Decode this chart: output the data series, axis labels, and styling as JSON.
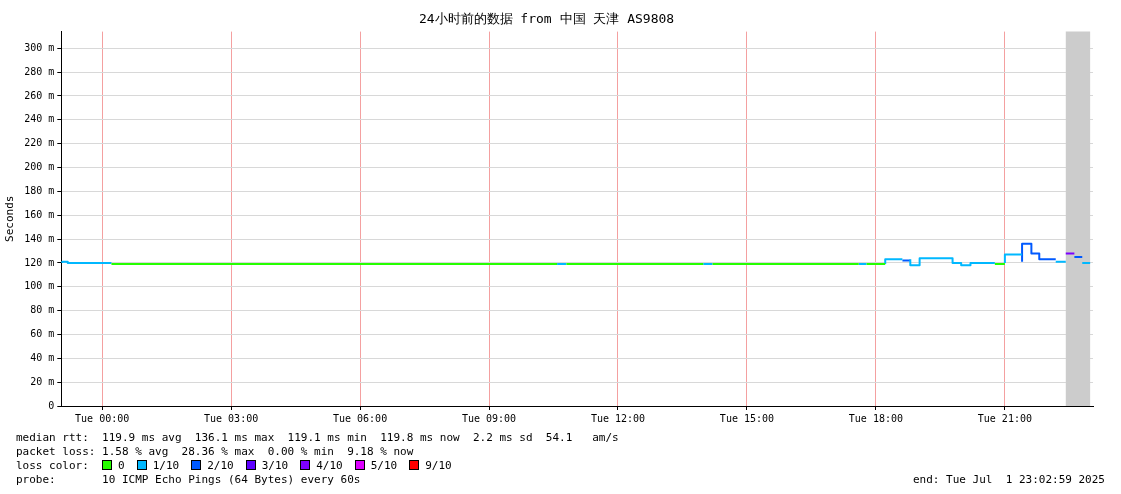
{
  "chart_data": {
    "type": "step",
    "title": "24小时前的数据 from 中国 天津 AS9808",
    "ylabel": "Seconds",
    "legend_title": "loss color:",
    "legend": "bottom",
    "grid": true,
    "xlim": [
      "2025-06-30T23:03",
      "2025-07-01T23:03"
    ],
    "xticks": [
      {
        "value": "2025-07-01T00:00",
        "label": "Tue 00:00"
      },
      {
        "value": "2025-07-01T03:00",
        "label": "Tue 03:00"
      },
      {
        "value": "2025-07-01T06:00",
        "label": "Tue 06:00"
      },
      {
        "value": "2025-07-01T09:00",
        "label": "Tue 09:00"
      },
      {
        "value": "2025-07-01T12:00",
        "label": "Tue 12:00"
      },
      {
        "value": "2025-07-01T15:00",
        "label": "Tue 15:00"
      },
      {
        "value": "2025-07-01T18:00",
        "label": "Tue 18:00"
      },
      {
        "value": "2025-07-01T21:00",
        "label": "Tue 21:00"
      }
    ],
    "ylim": [
      0,
      314
    ],
    "yticks": [
      0,
      {
        "value": 20,
        "label": "20 m"
      },
      {
        "value": 40,
        "label": "40 m"
      },
      {
        "value": 60,
        "label": "60 m"
      },
      {
        "value": 80,
        "label": "80 m"
      },
      {
        "value": 100,
        "label": "100 m"
      },
      {
        "value": 120,
        "label": "120 m"
      },
      {
        "value": 140,
        "label": "140 m"
      },
      {
        "value": 160,
        "label": "160 m"
      },
      {
        "value": 180,
        "label": "180 m"
      },
      {
        "value": 200,
        "label": "200 m"
      },
      {
        "value": 220,
        "label": "220 m"
      },
      {
        "value": 240,
        "label": "240 m"
      },
      {
        "value": 260,
        "label": "260 m"
      },
      {
        "value": 280,
        "label": "280 m"
      },
      {
        "value": 300,
        "label": "300 m"
      }
    ],
    "bands": [
      {
        "axis": "x",
        "from": "2025-07-01T22:25",
        "to": "2025-07-01T22:59",
        "color": "#cccccc"
      }
    ],
    "series": [
      {
        "name": "0",
        "color": "#26ff00",
        "x": [
          "2025-07-01T00:13",
          "2025-07-01T10:35",
          null,
          "2025-07-01T10:48",
          "2025-07-01T13:59",
          null,
          "2025-07-01T14:12",
          "2025-07-01T17:36",
          null,
          "2025-07-01T17:47",
          "2025-07-01T18:13",
          null,
          "2025-07-01T20:46",
          "2025-07-01T21:00"
        ],
        "values": [
          119,
          119,
          null,
          119,
          119,
          null,
          119,
          119,
          null,
          119,
          119,
          null,
          119,
          119
        ]
      },
      {
        "name": "1/10",
        "color": "#00b8ff",
        "x": [
          "2025-06-30T23:04",
          "2025-06-30T23:12",
          "2025-06-30T23:46",
          "2025-07-01T00:13",
          null,
          "2025-07-01T10:35",
          "2025-07-01T10:48",
          null,
          "2025-07-01T13:59",
          "2025-07-01T14:12",
          null,
          "2025-07-01T17:36",
          "2025-07-01T17:47",
          null,
          "2025-07-01T18:13",
          "2025-07-01T18:24",
          "2025-07-01T18:37",
          null,
          "2025-07-01T18:48",
          "2025-07-01T19:01",
          "2025-07-01T19:47",
          "2025-07-01T19:59",
          "2025-07-01T20:12",
          "2025-07-01T20:25",
          "2025-07-01T20:46",
          null,
          "2025-07-01T21:00",
          "2025-07-01T21:11",
          "2025-07-01T21:24",
          null,
          "2025-07-01T22:11",
          "2025-07-01T22:25",
          null,
          "2025-07-01T22:48",
          "2025-07-01T22:59"
        ],
        "values": [
          120,
          121,
          120,
          120,
          null,
          119,
          119,
          null,
          119,
          119,
          null,
          119,
          119,
          null,
          119,
          123,
          123,
          null,
          123,
          118,
          124,
          120,
          118,
          120,
          120,
          null,
          120,
          127,
          127,
          null,
          121,
          121,
          null,
          120,
          120
        ]
      },
      {
        "name": "2/10",
        "color": "#0059ff",
        "x": [
          "2025-07-01T18:37",
          "2025-07-01T18:48",
          null,
          "2025-07-01T21:24",
          "2025-07-01T21:37",
          "2025-07-01T21:48",
          "2025-07-01T22:01",
          "2025-07-01T22:11",
          null,
          "2025-07-01T22:37",
          "2025-07-01T22:48"
        ],
        "values": [
          122,
          122,
          null,
          121,
          136,
          128,
          123,
          123,
          null,
          125,
          125
        ]
      },
      {
        "name": "3/10",
        "color": "#5e00ff"
      },
      {
        "name": "4/10",
        "color": "#7e00ff",
        "x": [
          "2025-07-01T22:25",
          "2025-07-01T22:37"
        ],
        "values": [
          128,
          128
        ]
      },
      {
        "name": "5/10",
        "color": "#dd00ff"
      },
      {
        "name": "9/10",
        "color": "#ff0000"
      }
    ],
    "annotations": [
      "median rtt:  119.9 ms avg  136.1 ms max  119.1 ms min  119.8 ms now  2.2 ms sd  54.1   am/s",
      "packet loss: 1.58 % avg  28.36 % max  0.00 % min  9.18 % now",
      "probe:       10 ICMP Echo Pings (64 Bytes) every 60s",
      "end: Tue Jul  1 23:02:59 2025"
    ]
  }
}
